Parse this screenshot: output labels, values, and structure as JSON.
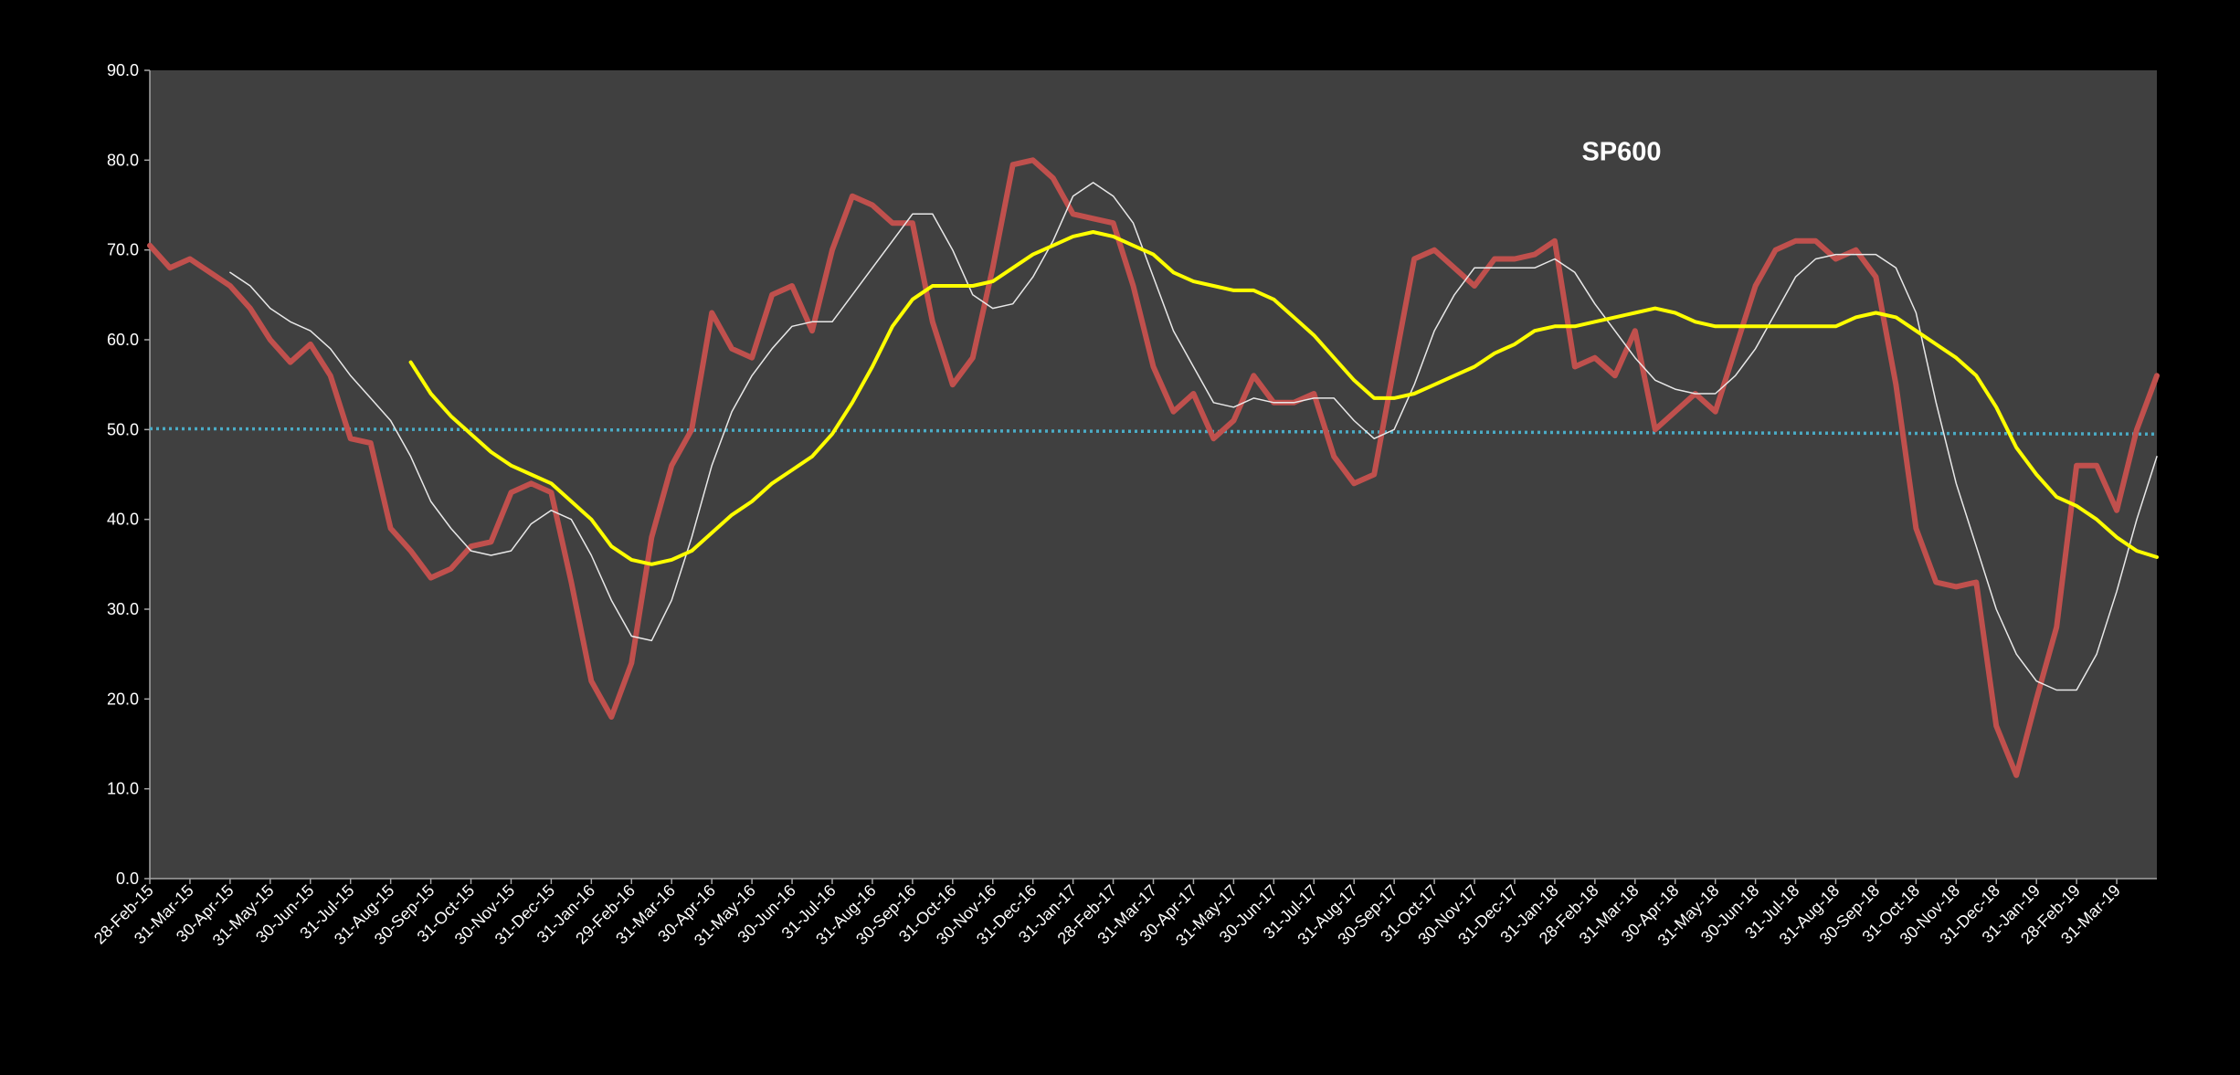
{
  "chart_data": {
    "type": "line",
    "title": "SP600",
    "title_color": "#ffff00",
    "categories": [
      "28-Feb-15",
      null,
      "31-Mar-15",
      null,
      "30-Apr-15",
      null,
      "31-May-15",
      null,
      "30-Jun-15",
      null,
      "31-Jul-15",
      null,
      "31-Aug-15",
      null,
      "30-Sep-15",
      null,
      "31-Oct-15",
      null,
      "30-Nov-15",
      null,
      "31-Dec-15",
      null,
      "31-Jan-16",
      null,
      "29-Feb-16",
      null,
      "31-Mar-16",
      null,
      "30-Apr-16",
      null,
      "31-May-16",
      null,
      "30-Jun-16",
      null,
      "31-Jul-16",
      null,
      "31-Aug-16",
      null,
      "30-Sep-16",
      null,
      "31-Oct-16",
      null,
      "30-Nov-16",
      null,
      "31-Dec-16",
      null,
      "31-Jan-17",
      null,
      "28-Feb-17",
      null,
      "31-Mar-17",
      null,
      "30-Apr-17",
      null,
      "31-May-17",
      null,
      "30-Jun-17",
      null,
      "31-Jul-17",
      null,
      "31-Aug-17",
      null,
      "30-Sep-17",
      null,
      "31-Oct-17",
      null,
      "30-Nov-17",
      null,
      "31-Dec-17",
      null,
      "31-Jan-18",
      null,
      "28-Feb-18",
      null,
      "31-Mar-18",
      null,
      "30-Apr-18",
      null,
      "31-May-18",
      null,
      "30-Jun-18",
      null,
      "31-Jul-18",
      null,
      "31-Aug-18",
      null,
      "30-Sep-18",
      null,
      "31-Oct-18",
      null,
      "30-Nov-18",
      null,
      "31-Dec-18",
      null,
      "31-Jan-19",
      null,
      "28-Feb-19",
      null,
      "31-Mar-19",
      null,
      null
    ],
    "series": [
      {
        "color": "#c0504d",
        "width": 6,
        "values": [
          70.5,
          68,
          69,
          67.5,
          66,
          63.5,
          60,
          57.5,
          59.5,
          56,
          49,
          48.5,
          39,
          36.5,
          33.5,
          34.5,
          37,
          37.5,
          43,
          44,
          43,
          33,
          22,
          18,
          24,
          38,
          46,
          50,
          63,
          59,
          58,
          65,
          66,
          61,
          70,
          76,
          75,
          73,
          73,
          62,
          55,
          58,
          68,
          79.5,
          80,
          78,
          74,
          73.5,
          73,
          66,
          57,
          52,
          54,
          49,
          51,
          56,
          53,
          53,
          54,
          47,
          44,
          45,
          57,
          69,
          70,
          68,
          66,
          69,
          69,
          69.5,
          71,
          57,
          58,
          56,
          61,
          50,
          52,
          54,
          52,
          59,
          66,
          70,
          71,
          71,
          69,
          70,
          67,
          55,
          39,
          33,
          32.5,
          33,
          17,
          11.5,
          20,
          28,
          46,
          46,
          41,
          50,
          56
        ]
      },
      {
        "color": "#e8e8e8",
        "width": 1.5,
        "values": [
          null,
          null,
          null,
          null,
          67.5,
          66,
          63.5,
          62,
          61,
          59,
          56,
          53.5,
          51,
          47,
          42,
          39,
          36.5,
          36,
          36.5,
          39.5,
          41,
          40,
          36,
          31,
          27,
          26.5,
          31,
          38,
          46,
          52,
          56,
          59,
          61.5,
          62,
          62,
          65,
          68,
          71,
          74,
          74,
          70,
          65,
          63.5,
          64,
          67,
          71,
          76,
          77.5,
          76,
          73,
          67,
          61,
          57,
          53,
          52.5,
          53.5,
          53,
          53,
          53.5,
          53.5,
          51,
          49,
          50,
          55,
          61,
          65,
          68,
          68,
          68,
          68,
          69,
          67.5,
          64,
          61,
          58,
          55.5,
          54.5,
          54,
          54,
          56,
          59,
          63,
          67,
          69,
          69.5,
          69.5,
          69.5,
          68,
          63,
          53,
          44,
          37,
          30,
          25,
          22,
          21,
          21,
          25,
          32,
          40,
          47
        ]
      },
      {
        "color": "#ffff00",
        "width": 4,
        "values": [
          null,
          null,
          null,
          null,
          null,
          null,
          null,
          null,
          null,
          null,
          null,
          null,
          null,
          57.5,
          54,
          51.5,
          49.5,
          47.5,
          46,
          45,
          44,
          42,
          40,
          37,
          35.5,
          35,
          35.5,
          36.5,
          38.5,
          40.5,
          42,
          44,
          45.5,
          47,
          49.5,
          53,
          57,
          61.5,
          64.5,
          66,
          66,
          66,
          66.5,
          68,
          69.5,
          70.5,
          71.5,
          72,
          71.5,
          70.5,
          69.5,
          67.5,
          66.5,
          66,
          65.5,
          65.5,
          64.5,
          62.5,
          60.5,
          58,
          55.5,
          53.5,
          53.5,
          54,
          55,
          56,
          57,
          58.5,
          59.5,
          61,
          61.5,
          61.5,
          62,
          62.5,
          63,
          63.5,
          63,
          62,
          61.5,
          61.5,
          61.5,
          61.5,
          61.5,
          61.5,
          61.5,
          62.5,
          63,
          62.5,
          61,
          59.5,
          58,
          56,
          52.5,
          48,
          45,
          42.5,
          41.5,
          40,
          38,
          36.5,
          35.8
        ]
      }
    ],
    "trendline": {
      "color": "#4bacc6",
      "values": [
        50.1,
        49.5
      ]
    },
    "ylim": [
      0,
      90
    ],
    "yticks": [
      {
        "value": 0,
        "label": "0.0"
      },
      {
        "value": 10,
        "label": "10.0"
      },
      {
        "value": 20,
        "label": "20.0"
      },
      {
        "value": 30,
        "label": "30.0"
      },
      {
        "value": 40,
        "label": "40.0"
      },
      {
        "value": 50,
        "label": "50.0"
      },
      {
        "value": 60,
        "label": "60.0"
      },
      {
        "value": 70,
        "label": "70.0"
      },
      {
        "value": 80,
        "label": "80.0"
      },
      {
        "value": 90,
        "label": "90.0"
      }
    ],
    "grid": false
  }
}
